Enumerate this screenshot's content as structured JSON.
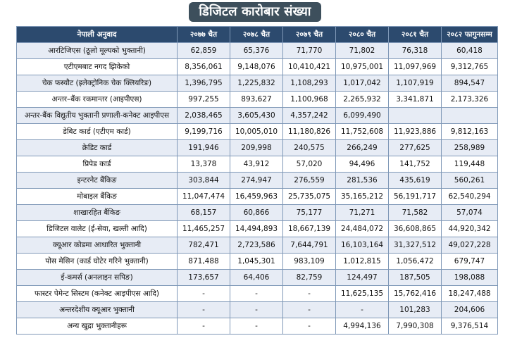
{
  "title": "डिजिटल कारोबार संख्या",
  "headers": [
    "नेपाली अनुवाद",
    "२०७७ चैत",
    "२०७८ चैत",
    "२०७९ चैत",
    "२०८० चैत",
    "२०८१ चैत",
    "२०८२ फागुनसम्म"
  ],
  "rows": [
    [
      "आरटिजिएस (ठूलो मूल्यको भुक्तानी)",
      "62,859",
      "65,376",
      "71,770",
      "71,802",
      "76,318",
      "60,418"
    ],
    [
      "एटीएमबाट नगद झिकेको",
      "8,356,061",
      "9,148,076",
      "10,410,421",
      "10,975,001",
      "11,097,969",
      "9,312,765"
    ],
    [
      "चेक फस्यौट (इलेक्ट्रोनिक चेक क्लियरिङ)",
      "1,396,795",
      "1,225,832",
      "1,108,293",
      "1,017,042",
      "1,107,919",
      "894,547"
    ],
    [
      "अन्तर–बैंक रकमान्तर (आइपीएस)",
      "997,255",
      "893,627",
      "1,100,968",
      "2,265,932",
      "3,341,871",
      "2,173,326"
    ],
    [
      "अन्तर-बैंक विद्युतीय भुक्तानी प्रणाली-कनेक्ट आइपीएस",
      "2,038,465",
      "3,605,430",
      "4,357,242",
      "6,099,490",
      "",
      ""
    ],
    [
      "डेबिट कार्ड (एटीएम कार्ड)",
      "9,199,716",
      "10,005,010",
      "11,180,826",
      "11,752,608",
      "11,923,886",
      "9,812,163"
    ],
    [
      "क्रेडिट कार्ड",
      "191,946",
      "209,998",
      "240,575",
      "266,249",
      "277,625",
      "258,989"
    ],
    [
      "प्रिपेड कार्ड",
      "13,378",
      "43,912",
      "57,020",
      "94,496",
      "141,752",
      "119,448"
    ],
    [
      "इन्टरनेट बैंकिङ",
      "303,844",
      "274,947",
      "276,559",
      "281,536",
      "435,619",
      "560,261"
    ],
    [
      "मोबाइल बैंकिङ",
      "11,047,474",
      "16,459,963",
      "25,735,075",
      "35,165,212",
      "56,191,717",
      "62,540,294"
    ],
    [
      "शाखारहित बैंकिङ",
      "68,157",
      "60,866",
      "75,177",
      "71,271",
      "71,582",
      "57,074"
    ],
    [
      "डिजिटल वालेट (ई-सेवा, खल्ती आदि)",
      "11,465,257",
      "14,494,893",
      "18,667,139",
      "24,484,072",
      "36,608,865",
      "44,920,342"
    ],
    [
      "क्यूआर कोडमा आधारित भुक्तानी",
      "782,471",
      "2,723,586",
      "7,644,791",
      "16,103,164",
      "31,327,512",
      "49,027,228"
    ],
    [
      "पोस मेसिन (कार्ड घोटेर गरिने भुक्तानी)",
      "871,488",
      "1,045,301",
      "983,109",
      "1,012,815",
      "1,056,472",
      "679,747"
    ],
    [
      "ई-कमर्स (अनलाइन सपिङ)",
      "173,657",
      "64,406",
      "82,759",
      "124,497",
      "187,505",
      "198,088"
    ],
    [
      "फास्टर पेमेन्ट सिस्टम (कनेक्ट आइपीएस आदि)",
      "-",
      "-",
      "-",
      "11,625,135",
      "15,762,416",
      "18,247,488"
    ],
    [
      "अन्तरदेशीय क्यूआर भुक्तानी",
      "-",
      "-",
      "-",
      "-",
      "101,283",
      "204,606"
    ],
    [
      "अन्य खुद्रा भुक्तानीहरू",
      "-",
      "-",
      "-",
      "4,994,136",
      "7,990,308",
      "9,376,514"
    ]
  ]
}
